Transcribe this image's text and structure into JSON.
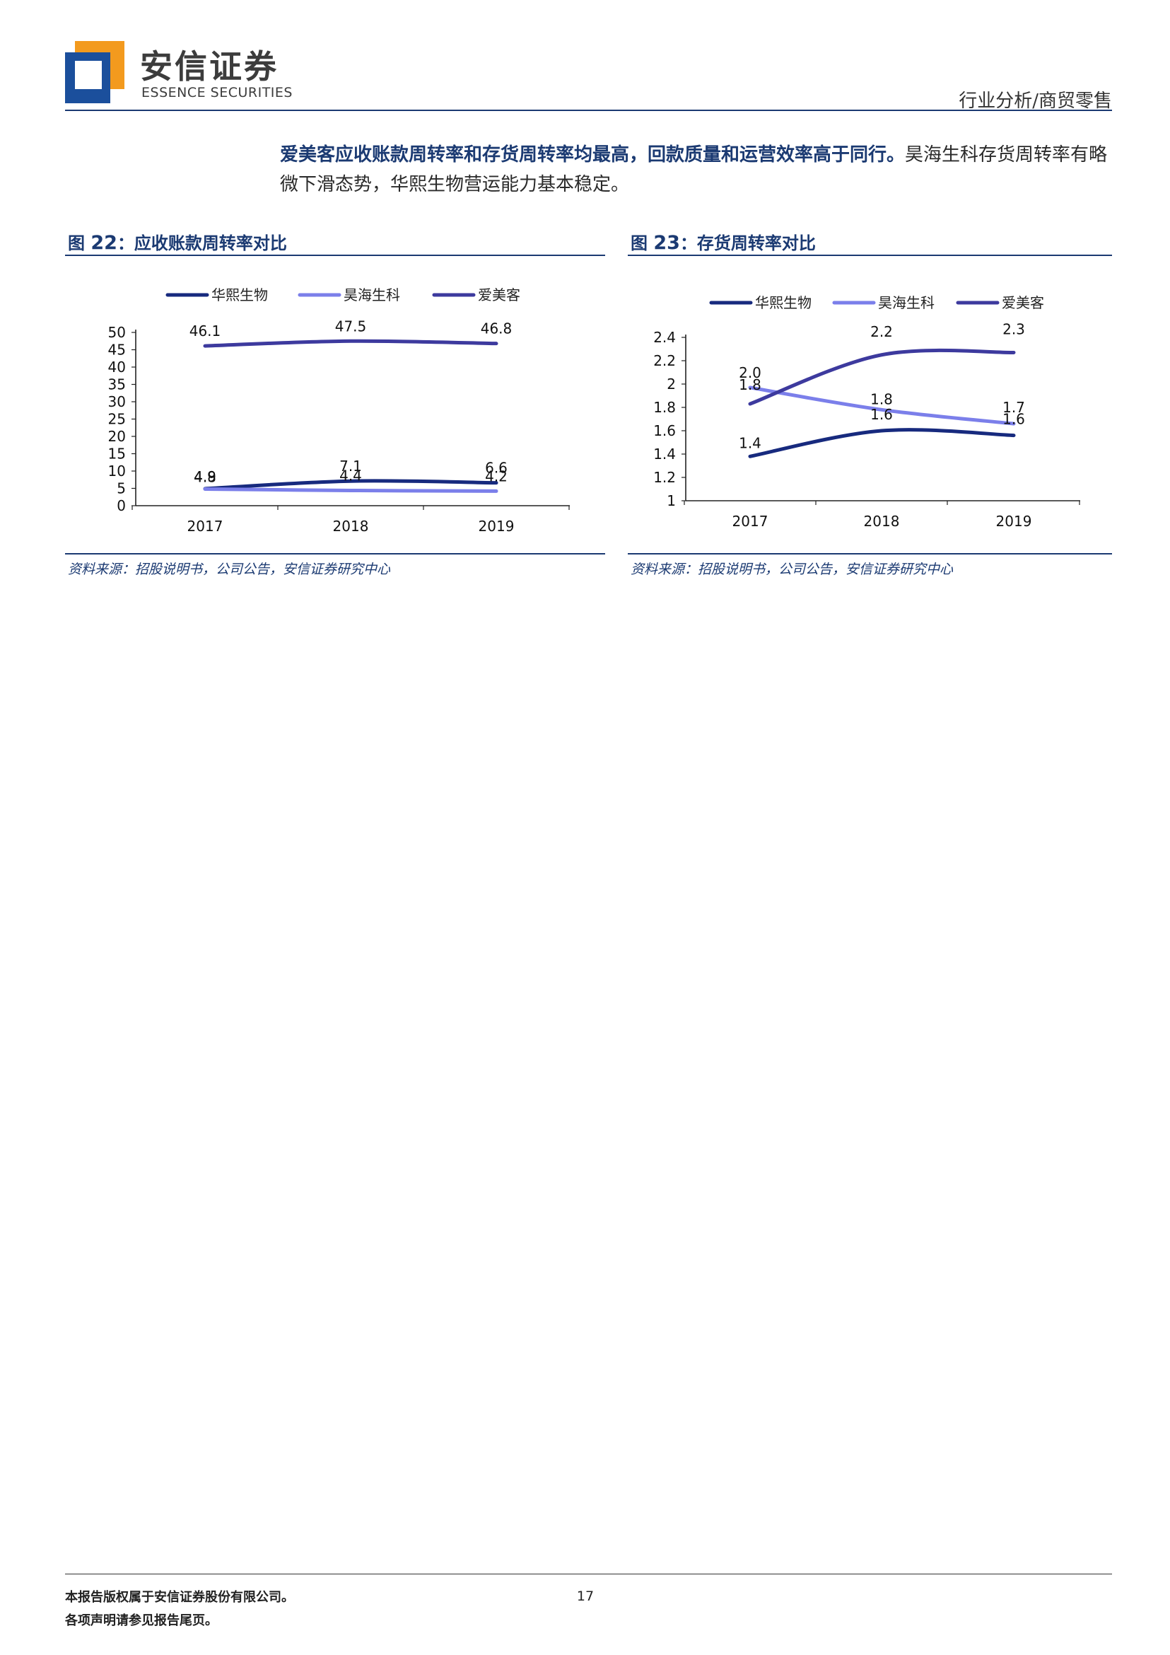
{
  "header": {
    "brand_cn": "安信证券",
    "brand_en": "ESSENCE SECURITIES",
    "category": "行业分析/商贸零售",
    "brand_colors": {
      "orange": "#f39a1e",
      "blue": "#1b4f9c",
      "rule": "#1b3a72"
    }
  },
  "intro": {
    "highlight": "爱美客应收账款周转率和存货周转率均最高，回款质量和运营效率高于同行。",
    "body": "昊海生科存货周转率有略微下滑态势，华熙生物营运能力基本稳定。"
  },
  "figures": [
    {
      "label": "图",
      "number": "22",
      "title": "：应收账款周转率对比",
      "source": "资料来源：招股说明书，公司公告，安信证券研究中心"
    },
    {
      "label": "图",
      "number": "23",
      "title": "：存货周转率对比",
      "source": "资料来源：招股说明书，公司公告，安信证券研究中心"
    }
  ],
  "chart_data": [
    {
      "type": "line",
      "categories": [
        "2017",
        "2018",
        "2019"
      ],
      "ylim": [
        0,
        50
      ],
      "yticks": [
        "0",
        "5",
        "10",
        "15",
        "20",
        "25",
        "30",
        "35",
        "40",
        "45",
        "50"
      ],
      "legend_position": "top",
      "smooth": true,
      "series": [
        {
          "name": "华熙生物",
          "color": "#172a7e",
          "values": [
            4.9,
            7.1,
            6.6
          ],
          "labels": [
            "4.9",
            "7.1",
            "6.6"
          ]
        },
        {
          "name": "昊海生科",
          "color": "#7b7fea",
          "values": [
            4.8,
            4.4,
            4.2
          ],
          "labels": [
            "4.8",
            "4.4",
            "4.2"
          ]
        },
        {
          "name": "爱美客",
          "color": "#3d3a9e",
          "values": [
            46.1,
            47.5,
            46.8
          ],
          "labels": [
            "46.1",
            "47.5",
            "46.8"
          ]
        }
      ]
    },
    {
      "type": "line",
      "categories": [
        "2017",
        "2018",
        "2019"
      ],
      "ylim": [
        1,
        2.4
      ],
      "yticks": [
        "1",
        "1.2",
        "1.4",
        "1.6",
        "1.8",
        "2",
        "2.2",
        "2.4"
      ],
      "legend_position": "top",
      "smooth": true,
      "series": [
        {
          "name": "华熙生物",
          "color": "#172a7e",
          "values": [
            1.38,
            1.6,
            1.56
          ],
          "labels": [
            "1.4",
            "1.6",
            "1.6"
          ]
        },
        {
          "name": "昊海生科",
          "color": "#7b7fea",
          "values": [
            1.97,
            1.78,
            1.66
          ],
          "labels": [
            "2.0",
            "1.8",
            "1.7"
          ]
        },
        {
          "name": "爱美客",
          "color": "#3d3a9e",
          "values": [
            1.83,
            2.25,
            2.27
          ],
          "labels": [
            "1.8",
            "2.2",
            "2.3"
          ]
        }
      ]
    }
  ],
  "footer": {
    "copyright": "本报告版权属于安信证券股份有限公司。",
    "disclaimer": "各项声明请参见报告尾页。",
    "page": "17"
  }
}
